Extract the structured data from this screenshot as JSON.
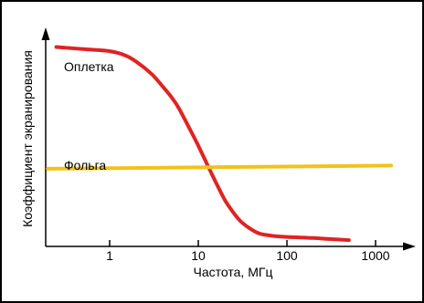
{
  "chart_data": {
    "type": "line",
    "title": "",
    "xlabel": "Частота, МГц",
    "ylabel": "Коэффициент экранирования",
    "x_scale": "log",
    "xlim": [
      0.2,
      1500
    ],
    "ylim": [
      0,
      1
    ],
    "grid": false,
    "xticks": [
      {
        "value": 1,
        "label": "1"
      },
      {
        "value": 10,
        "label": "10"
      },
      {
        "value": 100,
        "label": "100"
      },
      {
        "value": 1000,
        "label": "1000"
      }
    ],
    "series": [
      {
        "name": "Оплетка",
        "color": "#e02323",
        "x": [
          0.25,
          0.5,
          1,
          1.5,
          2,
          3,
          4,
          5,
          6,
          8,
          10,
          12,
          14,
          16,
          20,
          25,
          30,
          40,
          50,
          70,
          100,
          200,
          300,
          500
        ],
        "y": [
          0.95,
          0.94,
          0.93,
          0.91,
          0.88,
          0.82,
          0.76,
          0.71,
          0.66,
          0.56,
          0.48,
          0.41,
          0.35,
          0.3,
          0.22,
          0.16,
          0.12,
          0.08,
          0.06,
          0.05,
          0.045,
          0.04,
          0.035,
          0.03
        ]
      },
      {
        "name": "Фольга",
        "color": "#f2c21b",
        "x": [
          0.2,
          1500
        ],
        "y": [
          0.37,
          0.385
        ]
      }
    ]
  }
}
